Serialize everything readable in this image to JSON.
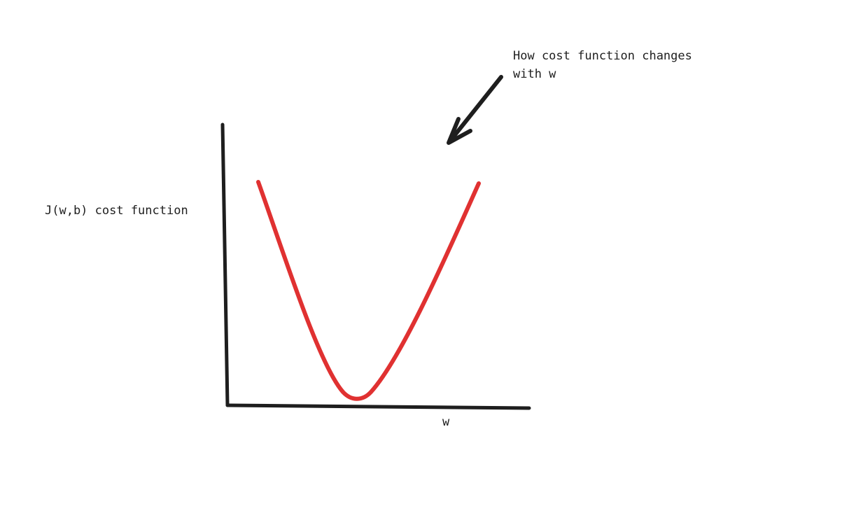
{
  "diagram": {
    "y_axis_label": "J(w,b) cost function",
    "x_axis_label": "w",
    "annotation": {
      "line1": "How cost function changes",
      "line2": "with w"
    },
    "curve_color": "#e03131",
    "ink_color": "#1e1e1e"
  }
}
